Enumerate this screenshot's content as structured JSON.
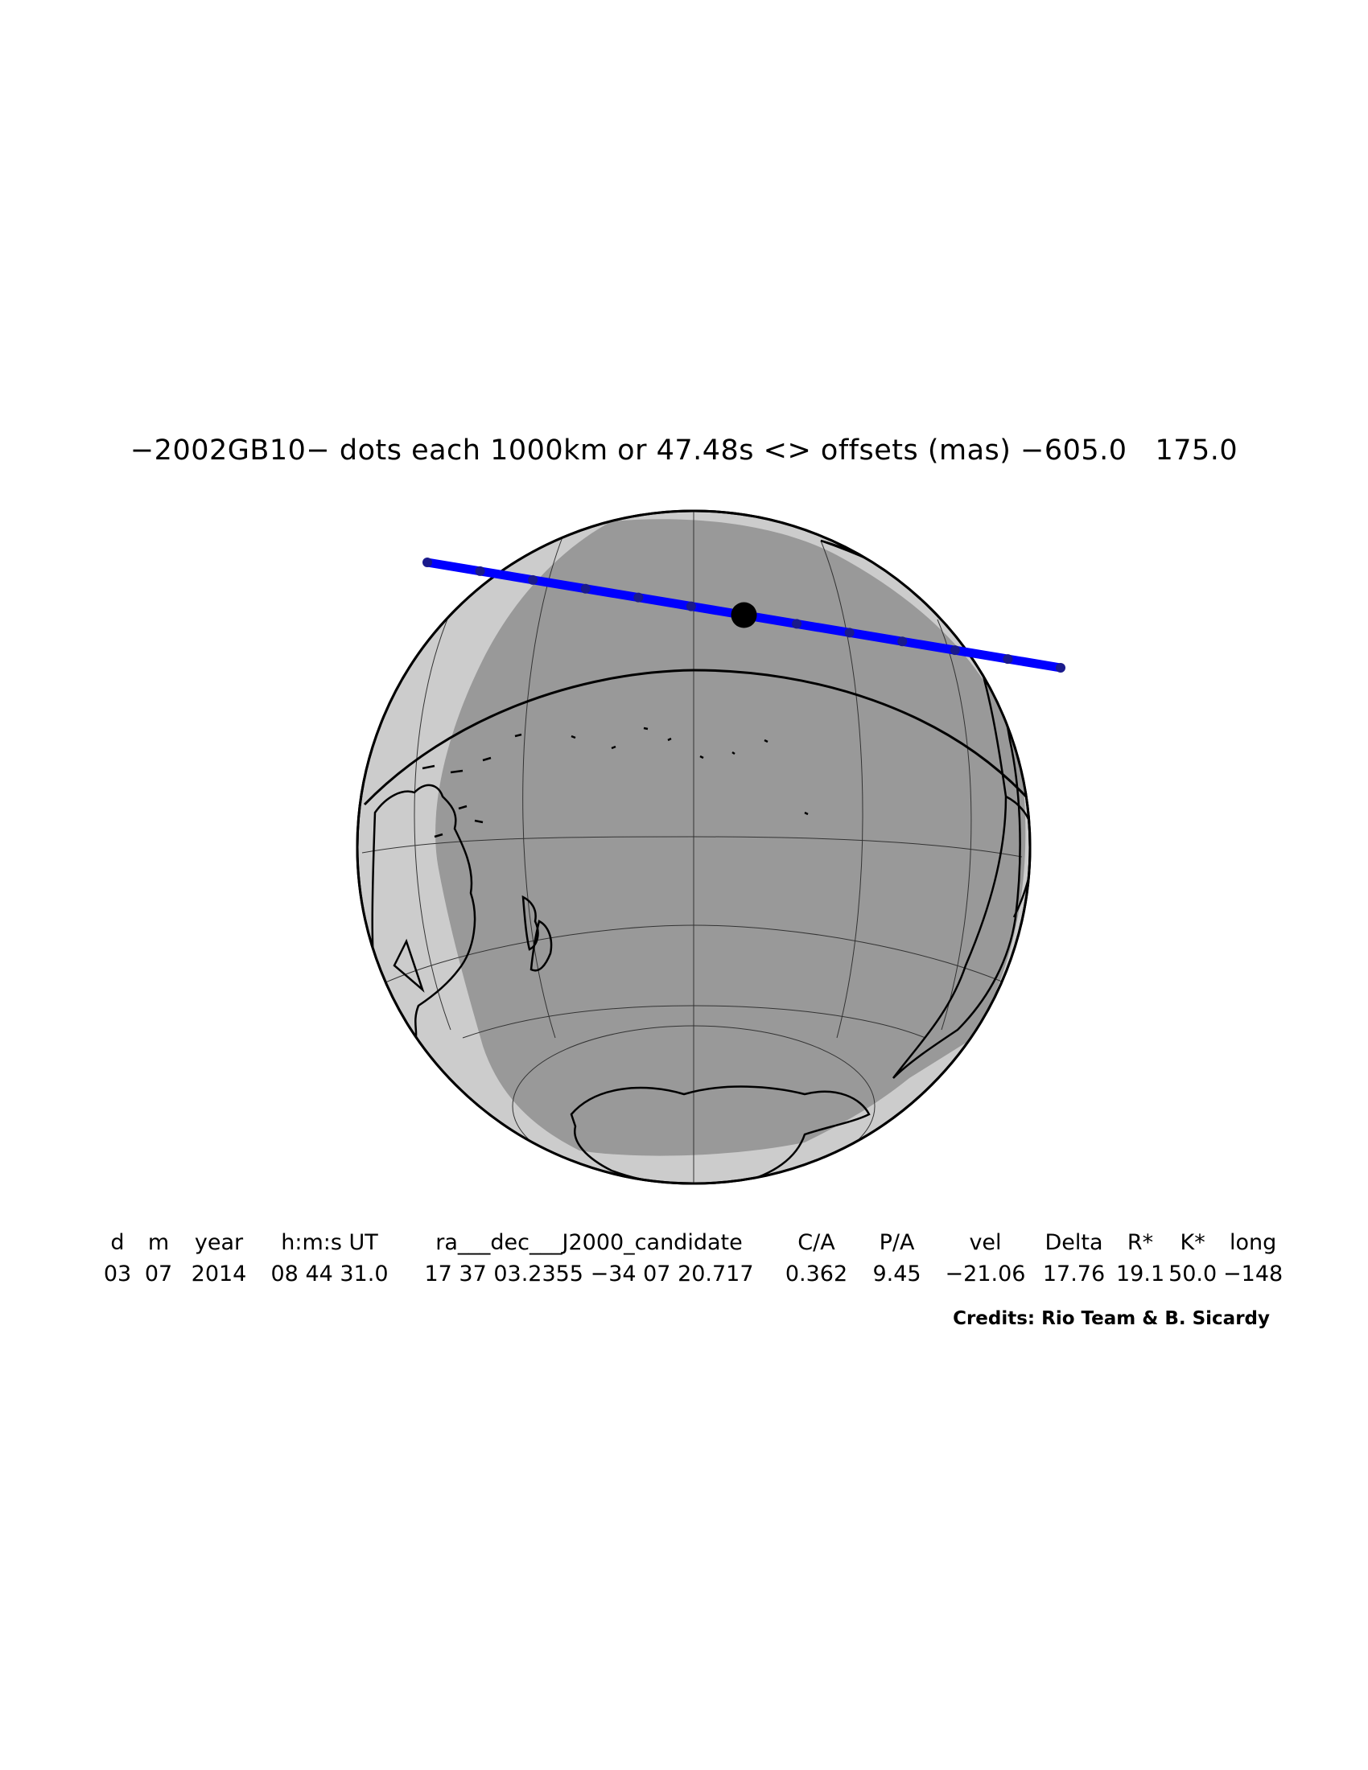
{
  "title": "−2002GB10− dots each 1000km or 47.48s <> offsets (mas) −605.0   175.0",
  "table": {
    "headers": [
      "d",
      "m",
      "year",
      "h:m:s UT",
      "ra___dec___J2000_candidate",
      "C/A",
      "P/A",
      "vel",
      "Delta",
      "R*",
      "K*",
      "long"
    ],
    "values": [
      "03",
      "07",
      "2014",
      "08 44 31.0",
      "17 37 03.2355 −34 07 20.717",
      "0.362",
      "9.45",
      "−21.06",
      "17.76",
      "19.1",
      "50.0",
      "−148"
    ]
  },
  "credits": "Credits: Rio Team & B. Sicardy",
  "colors": {
    "globe_night": "#999999",
    "globe_twilight": "#cccccc",
    "shadow_path": "#0000ff",
    "coastline": "#000000",
    "grid": "#333333"
  },
  "shadow_path": {
    "dot_spacing_km": 1000,
    "dot_spacing_s": 47.48,
    "dot_count": 13,
    "closest_approach_dot_index": 6
  }
}
